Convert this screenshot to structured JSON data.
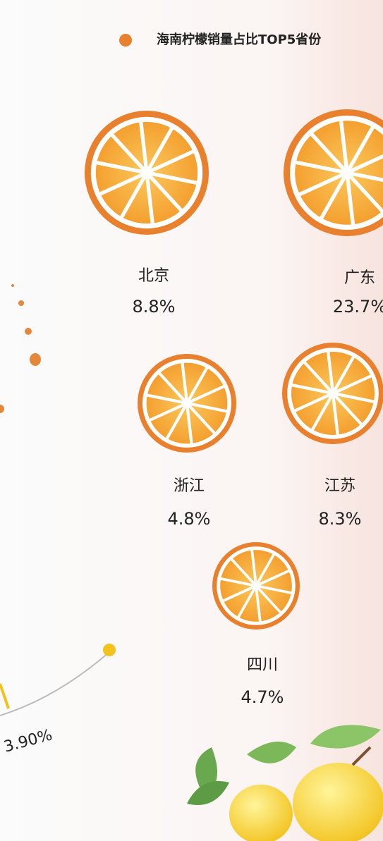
{
  "chart_data": {
    "type": "pictorial",
    "series": [
      {
        "name": "海南柠檬销量占比TOP5省份",
        "color": "#e8802e",
        "values": [
          8.8,
          23.7,
          4.8,
          8.3,
          4.7
        ],
        "value_labels": [
          "8.8%",
          "23.7%",
          "4.8%",
          "8.3%",
          "4.7%"
        ]
      }
    ],
    "categories": [
      "北京",
      "广东",
      "浙江",
      "江苏",
      "四川"
    ],
    "annotations": [
      "3.90%"
    ]
  }
}
